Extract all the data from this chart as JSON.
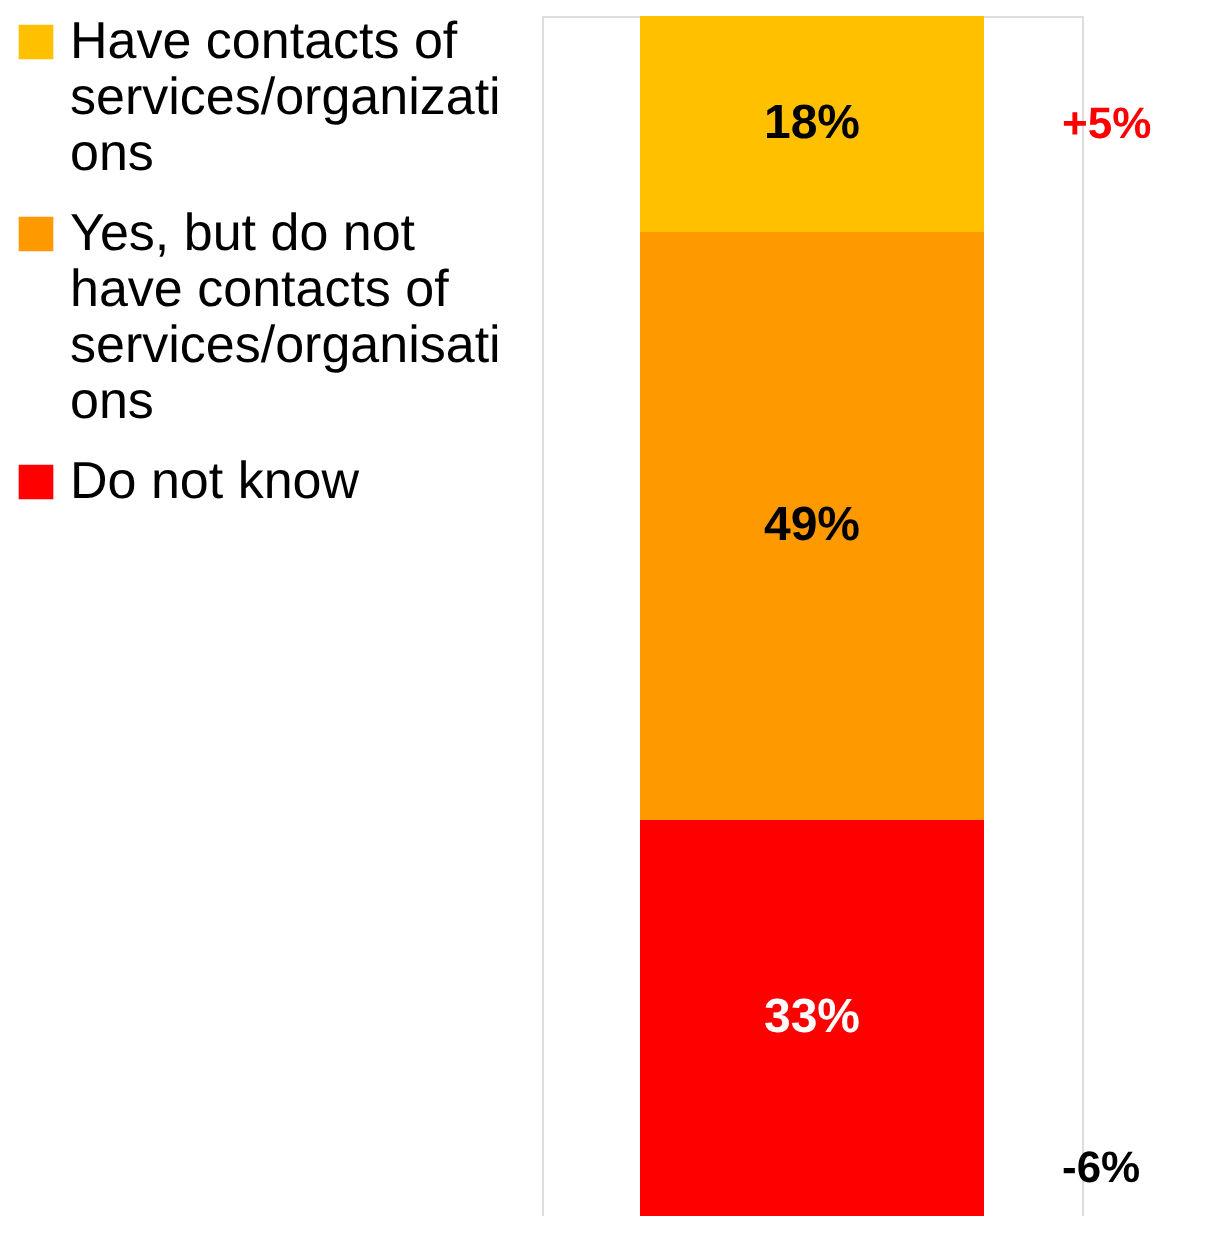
{
  "chart_data": {
    "type": "bar",
    "stacked": true,
    "categories": [
      null
    ],
    "legend": "left",
    "tick_labels": false,
    "series": [
      {
        "name": "Do not know",
        "color": "#ff0000",
        "values": [
          33
        ],
        "value_labels": [
          "33%"
        ]
      },
      {
        "name": "Yes, but do not have contacts of services/organisations",
        "color": "#ff9900",
        "values": [
          49
        ],
        "value_labels": [
          "49%"
        ]
      },
      {
        "name": "Have contacts of services/organizations",
        "color": "#ffc000",
        "values": [
          18
        ],
        "value_labels": [
          "18%"
        ]
      }
    ],
    "annotations": [
      "+5%",
      "-6%"
    ]
  }
}
